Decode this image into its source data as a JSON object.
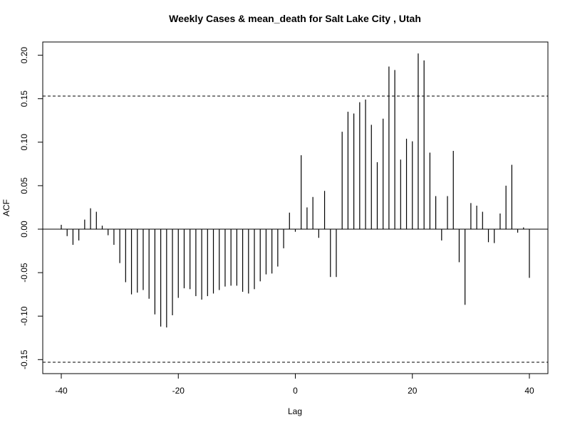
{
  "chart_data": {
    "type": "bar",
    "title": "Weekly Cases & mean_death for Salt Lake City , Utah",
    "xlabel": "Lag",
    "ylabel": "ACF",
    "xlim": [
      -40,
      40
    ],
    "ylim": [
      -0.165,
      0.21
    ],
    "x_ticks": [
      -40,
      -20,
      0,
      20,
      40
    ],
    "x_tick_labels": [
      "-40",
      "-20",
      "0",
      "20",
      "40"
    ],
    "y_ticks": [
      -0.15,
      -0.1,
      -0.05,
      0.0,
      0.05,
      0.1,
      0.15,
      0.2
    ],
    "y_tick_labels": [
      "-0.15",
      "-0.10",
      "-0.05",
      "0.00",
      "0.05",
      "0.10",
      "0.15",
      "0.20"
    ],
    "confidence_band": 0.153,
    "grid": false,
    "x": [
      -40,
      -39,
      -38,
      -37,
      -36,
      -35,
      -34,
      -33,
      -32,
      -31,
      -30,
      -29,
      -28,
      -27,
      -26,
      -25,
      -24,
      -23,
      -22,
      -21,
      -20,
      -19,
      -18,
      -17,
      -16,
      -15,
      -14,
      -13,
      -12,
      -11,
      -10,
      -9,
      -8,
      -7,
      -6,
      -5,
      -4,
      -3,
      -2,
      -1,
      0,
      1,
      2,
      3,
      4,
      5,
      6,
      7,
      8,
      9,
      10,
      11,
      12,
      13,
      14,
      15,
      16,
      17,
      18,
      19,
      20,
      21,
      22,
      23,
      24,
      25,
      26,
      27,
      28,
      29,
      30,
      31,
      32,
      33,
      34,
      35,
      36,
      37,
      38,
      39,
      40
    ],
    "values": [
      0.005,
      -0.008,
      -0.018,
      -0.013,
      0.011,
      0.024,
      0.02,
      0.004,
      -0.007,
      -0.018,
      -0.039,
      -0.061,
      -0.075,
      -0.073,
      -0.07,
      -0.08,
      -0.098,
      -0.112,
      -0.113,
      -0.099,
      -0.079,
      -0.068,
      -0.069,
      -0.077,
      -0.081,
      -0.077,
      -0.074,
      -0.07,
      -0.066,
      -0.065,
      -0.065,
      -0.072,
      -0.074,
      -0.069,
      -0.06,
      -0.052,
      -0.051,
      -0.043,
      -0.022,
      0.019,
      -0.003,
      0.085,
      0.025,
      0.037,
      -0.01,
      0.044,
      -0.055,
      -0.055,
      0.112,
      0.135,
      0.133,
      0.146,
      0.149,
      0.12,
      0.077,
      0.127,
      0.187,
      0.183,
      0.08,
      0.104,
      0.101,
      0.202,
      0.194,
      0.088,
      0.038,
      -0.013,
      0.038,
      0.09,
      -0.038,
      -0.087,
      0.03,
      0.027,
      0.02,
      -0.015,
      -0.016,
      0.018,
      0.05,
      0.074,
      -0.004,
      0.002,
      -0.056
    ]
  }
}
